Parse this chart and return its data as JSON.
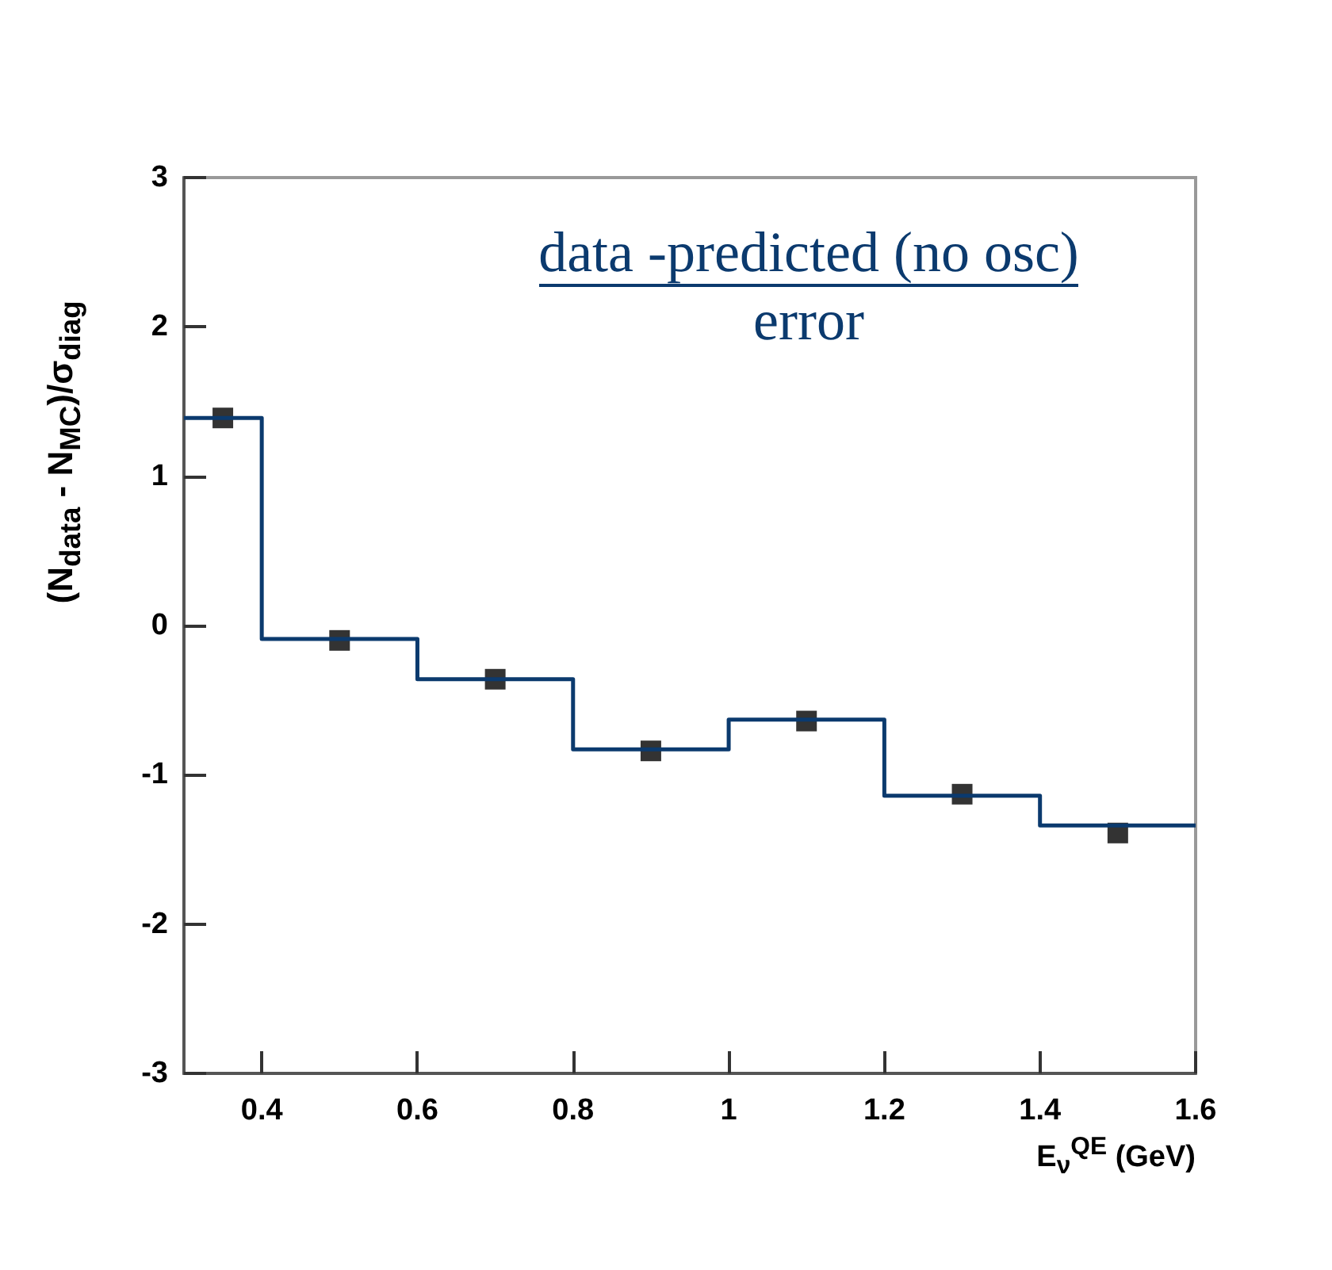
{
  "chart_data": {
    "type": "histogram",
    "xlabel": "E$_{ν}$$^{QE}$ (GeV)",
    "ylabel": "(N$_{data}$ - N$_{MC}$)/σ$_{diag}$",
    "annotations": [
      "data -predicted (no osc)",
      "error"
    ],
    "series": [
      {
        "color": "#0b3a6e",
        "bins": [
          0.3,
          0.4,
          0.6,
          0.8,
          1.0,
          1.2,
          1.4,
          1.6
        ],
        "values": [
          1.39,
          -0.09,
          -0.36,
          -0.83,
          -0.63,
          -1.14,
          -1.34
        ]
      },
      {
        "type": "scatter",
        "color": "#000000",
        "marker": "square",
        "x": [
          0.35,
          0.5,
          0.7,
          0.9,
          1.1,
          1.3,
          1.5
        ],
        "values": [
          1.39,
          -0.1,
          -0.36,
          -0.84,
          -0.64,
          -1.13,
          -1.39
        ]
      }
    ],
    "xlim": [
      0.3,
      1.6
    ],
    "xticks": [
      0.4,
      0.6,
      0.8,
      1,
      1.2,
      1.4,
      1.6
    ],
    "ylim": [
      -3,
      3
    ],
    "yticks": [
      -3,
      -2,
      -1,
      0,
      1,
      2,
      3
    ],
    "grid": false
  }
}
